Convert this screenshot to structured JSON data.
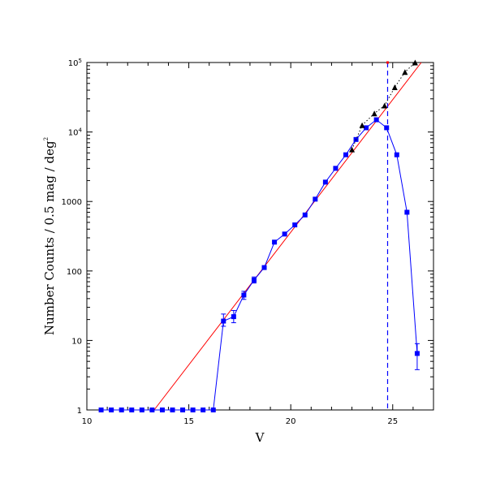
{
  "chart_data": {
    "type": "scatter",
    "xlabel": "V",
    "ylabel": "Number Counts / 0.5 mag / deg",
    "ylabel_exponent": "2",
    "xlim": [
      10,
      27
    ],
    "ylim": [
      1,
      100000
    ],
    "yscale": "log",
    "grid": false,
    "x_ticks": [
      {
        "value": 10,
        "label": "10"
      },
      {
        "value": 15,
        "label": "15"
      },
      {
        "value": 20,
        "label": "20"
      },
      {
        "value": 25,
        "label": "25"
      }
    ],
    "y_ticks": [
      {
        "value": 1,
        "label": "1"
      },
      {
        "value": 10,
        "label": "10"
      },
      {
        "value": 100,
        "label": "100"
      },
      {
        "value": 1000,
        "label": "1000"
      },
      {
        "value": 10000,
        "label": "10",
        "exponent": "4"
      },
      {
        "value": 100000,
        "label": "10",
        "exponent": "5"
      }
    ],
    "series": [
      {
        "color": "#0000ff",
        "marker": "square",
        "line": "solid",
        "points": [
          {
            "x": 10.7,
            "y": 1
          },
          {
            "x": 11.2,
            "y": 1
          },
          {
            "x": 11.7,
            "y": 1
          },
          {
            "x": 12.2,
            "y": 1
          },
          {
            "x": 12.7,
            "y": 1
          },
          {
            "x": 13.2,
            "y": 1
          },
          {
            "x": 13.7,
            "y": 1
          },
          {
            "x": 14.2,
            "y": 1
          },
          {
            "x": 14.7,
            "y": 1
          },
          {
            "x": 15.2,
            "y": 1
          },
          {
            "x": 15.7,
            "y": 1
          },
          {
            "x": 16.2,
            "y": 1
          },
          {
            "x": 16.7,
            "y": 19,
            "err": [
              16,
              24
            ]
          },
          {
            "x": 17.2,
            "y": 22,
            "err": [
              18,
              27
            ]
          },
          {
            "x": 17.7,
            "y": 45,
            "err": [
              39,
              51
            ]
          },
          {
            "x": 18.2,
            "y": 74,
            "err": [
              67,
              82
            ]
          },
          {
            "x": 18.7,
            "y": 112
          },
          {
            "x": 19.2,
            "y": 260
          },
          {
            "x": 19.7,
            "y": 340
          },
          {
            "x": 20.2,
            "y": 460
          },
          {
            "x": 20.7,
            "y": 640
          },
          {
            "x": 21.2,
            "y": 1080
          },
          {
            "x": 21.7,
            "y": 1900
          },
          {
            "x": 22.2,
            "y": 3000
          },
          {
            "x": 22.7,
            "y": 4700
          },
          {
            "x": 23.2,
            "y": 7800
          },
          {
            "x": 23.7,
            "y": 11500
          },
          {
            "x": 24.2,
            "y": 15000
          },
          {
            "x": 24.7,
            "y": 11500
          },
          {
            "x": 25.2,
            "y": 4700
          },
          {
            "x": 25.7,
            "y": 700
          },
          {
            "x": 26.2,
            "y": 6.5,
            "err": [
              3.8,
              9
            ]
          }
        ]
      },
      {
        "color": "#000000",
        "marker": "triangle",
        "line": "dotted",
        "points": [
          {
            "x": 23.0,
            "y": 5600
          },
          {
            "x": 23.5,
            "y": 12500
          },
          {
            "x": 24.1,
            "y": 18500
          },
          {
            "x": 24.6,
            "y": 24000
          },
          {
            "x": 25.1,
            "y": 44000
          },
          {
            "x": 25.6,
            "y": 73000
          },
          {
            "x": 26.1,
            "y": 100000
          }
        ]
      }
    ],
    "fit_line": {
      "color": "#ff0000",
      "x": [
        13.3,
        26.4
      ],
      "y": [
        1,
        100000
      ]
    },
    "vertical_line": {
      "x": 24.75,
      "color": "#0000ff",
      "style": "dashed"
    }
  }
}
